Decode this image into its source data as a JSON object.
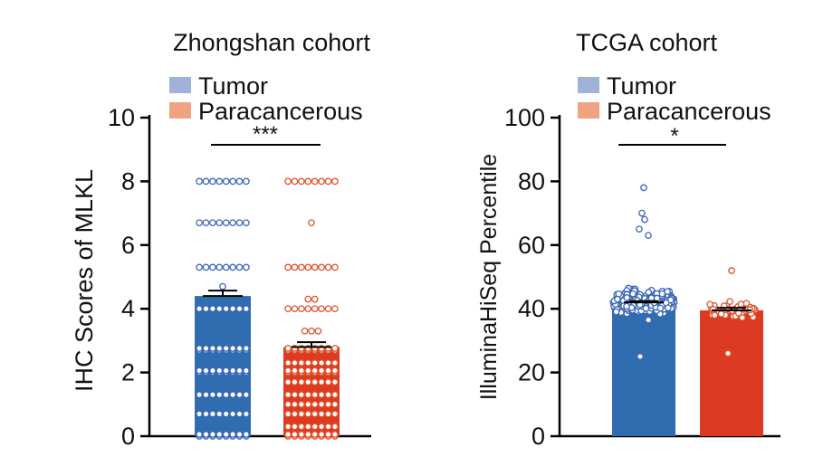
{
  "colors": {
    "tumor_bar": "#2f6db0",
    "tumor_point": "#3a66b8",
    "tumor_legend": "#9fb3d8",
    "para_bar": "#dd3a22",
    "para_point": "#e0512c",
    "para_legend": "#f0a383",
    "axis": "#000000"
  },
  "chart_data": [
    {
      "type": "bar",
      "title": "Zhongshan cohort",
      "ylabel": "IHC Scores of MLKL",
      "xlabel": "",
      "ylim": [
        0,
        10
      ],
      "yticks": [
        "0",
        "2",
        "4",
        "6",
        "8",
        "10"
      ],
      "legend": {
        "placement": "top-left",
        "entries": [
          "Tumor",
          "Paracancerous"
        ]
      },
      "categories": [
        "Tumor",
        "Paracancerous"
      ],
      "series": [
        {
          "name": "Tumor",
          "mean": 4.4,
          "sem": 0.17,
          "score_levels": [
            0,
            0.7,
            1.3,
            2,
            2.7,
            4,
            5.3,
            6.7,
            8
          ]
        },
        {
          "name": "Paracancerous",
          "mean": 2.8,
          "sem": 0.15,
          "score_levels": [
            0,
            0.3,
            0.7,
            1,
            1.3,
            1.7,
            2,
            2.3,
            2.7,
            3.3,
            4,
            4.3,
            5.3,
            6.7,
            8
          ]
        }
      ],
      "significance": "***",
      "grid": false
    },
    {
      "type": "bar",
      "title": "TCGA cohort",
      "ylabel": "IlluminaHiSeq Percentile",
      "xlabel": "",
      "ylim": [
        0,
        100
      ],
      "yticks": [
        "0",
        "20",
        "40",
        "60",
        "80",
        "100"
      ],
      "legend": {
        "placement": "top-left",
        "entries": [
          "Tumor",
          "Paracancerous"
        ]
      },
      "categories": [
        "Tumor",
        "Paracancerous"
      ],
      "series": [
        {
          "name": "Tumor",
          "mean": 42,
          "sem": 0.4,
          "range": [
            25,
            78
          ]
        },
        {
          "name": "Paracancerous",
          "mean": 39.5,
          "sem": 0.8,
          "range": [
            26,
            52
          ]
        }
      ],
      "significance": "*",
      "grid": false
    }
  ]
}
